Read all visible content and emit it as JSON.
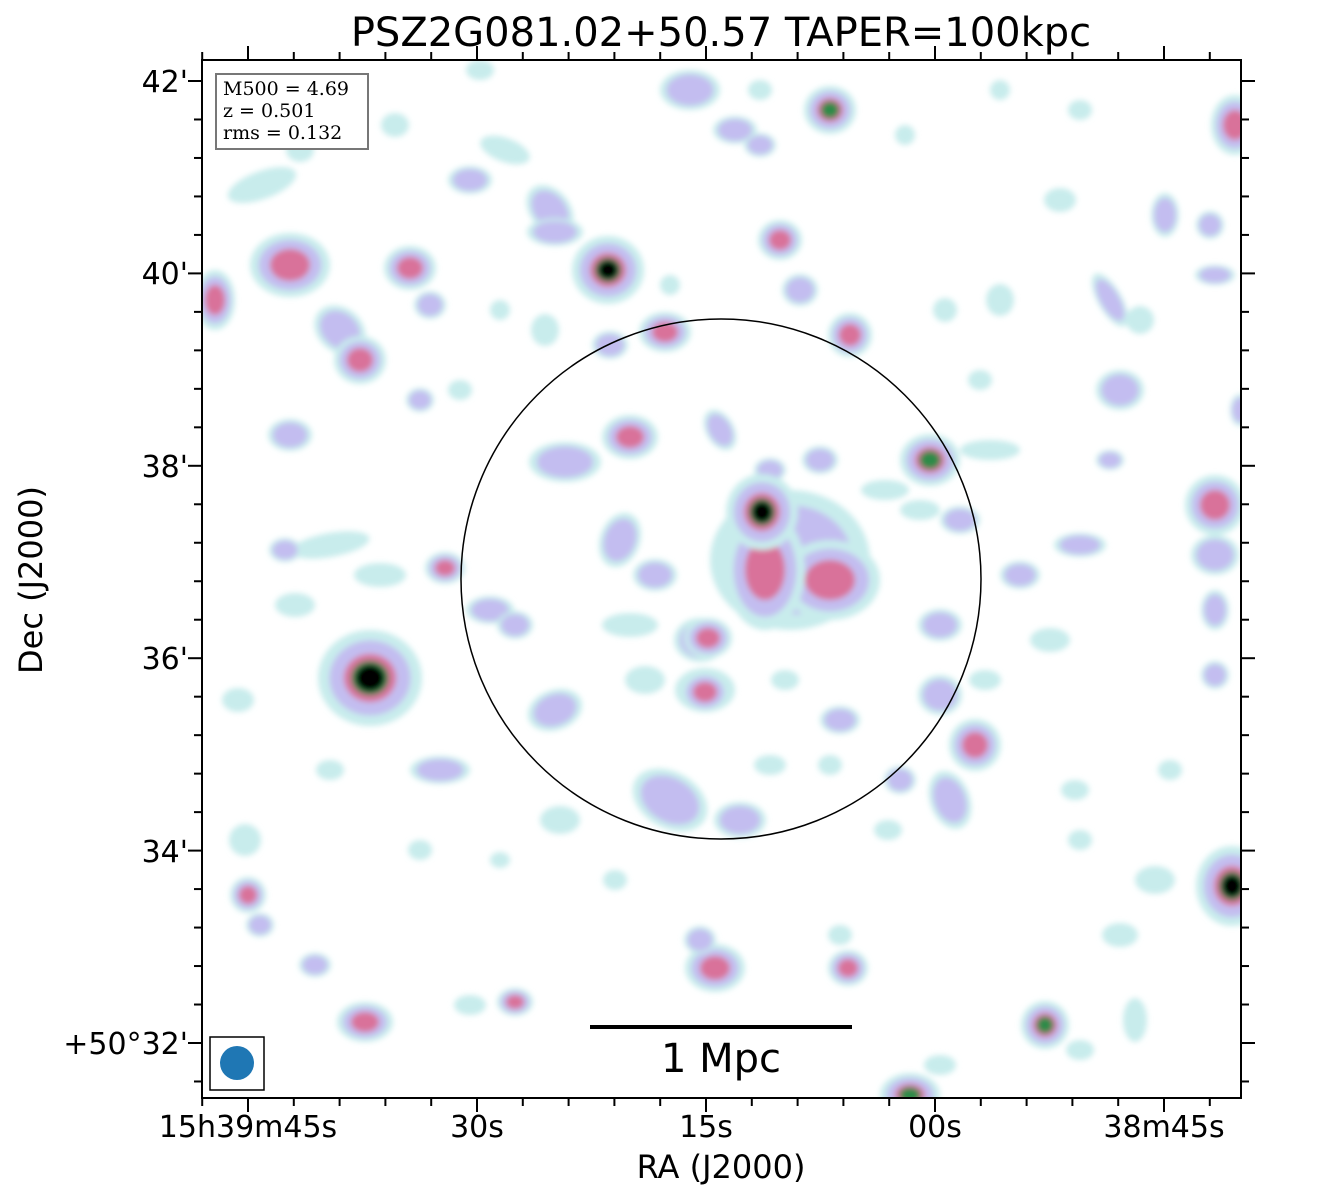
{
  "title": "PSZ2G081.02+50.57 TAPER=100kpc",
  "xlabel": "RA (J2000)",
  "ylabel": "Dec (J2000)",
  "x_ticks": [
    "15h39m45s",
    "30s",
    "15s",
    "00s",
    "38m45s"
  ],
  "y_ticks": [
    "42'",
    "40'",
    "38'",
    "36'",
    "34'",
    "+50°32'"
  ],
  "info": {
    "m500": "M500 = 4.69",
    "z": "z = 0.501",
    "rms": "rms = 0.132"
  },
  "scalebar_label": "1 Mpc",
  "colors": {
    "faint": "#c8ecec",
    "low": "#c3bdf0",
    "mid": "#d9729a",
    "high": "#2f8a4a",
    "peak": "#000000",
    "beam": "#1f77b4"
  }
}
